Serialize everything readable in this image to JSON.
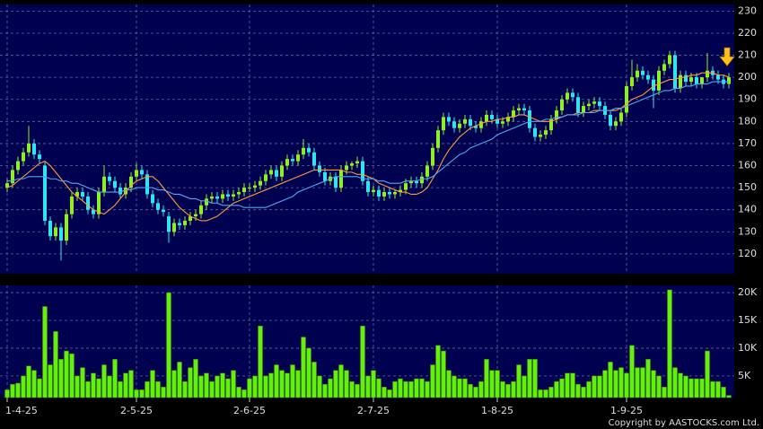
{
  "chart_data": {
    "type": "candlestick",
    "categories": [
      "1-4-25",
      null,
      null,
      null,
      null,
      null,
      null,
      null,
      null,
      null,
      null,
      null,
      null,
      null,
      null,
      null,
      null,
      null,
      null,
      null,
      null,
      null,
      null,
      null,
      "2-5-25",
      null,
      null,
      null,
      null,
      null,
      null,
      null,
      null,
      null,
      null,
      null,
      null,
      null,
      null,
      null,
      null,
      null,
      null,
      null,
      null,
      "2-6-25",
      null,
      null,
      null,
      null,
      null,
      null,
      null,
      null,
      null,
      null,
      null,
      null,
      null,
      null,
      null,
      null,
      null,
      null,
      null,
      null,
      null,
      null,
      "2-7-25",
      null,
      null,
      null,
      null,
      null,
      null,
      null,
      null,
      null,
      null,
      null,
      null,
      null,
      null,
      null,
      null,
      null,
      null,
      null,
      null,
      null,
      null,
      "1-8-25",
      null,
      null,
      null,
      null,
      null,
      null,
      null,
      null,
      null,
      null,
      null,
      null,
      null,
      null,
      null,
      null,
      null,
      null,
      null,
      null,
      null,
      null,
      null,
      "1-9-25",
      null,
      null,
      null,
      null,
      null,
      null,
      null,
      null,
      null,
      null,
      null,
      null,
      null,
      null,
      null,
      null,
      null,
      null,
      null
    ],
    "open": [
      150,
      152,
      158,
      162,
      166,
      170,
      165,
      160,
      135,
      128,
      132,
      126,
      138,
      146,
      148,
      146,
      140,
      138,
      148,
      155,
      153,
      150,
      147,
      150,
      155,
      158,
      156,
      147,
      143,
      140,
      137,
      130,
      134,
      133,
      135,
      137,
      138,
      142,
      145,
      146,
      145,
      147,
      146,
      147,
      148,
      150,
      150,
      151,
      153,
      156,
      158,
      155,
      160,
      163,
      162,
      165,
      168,
      166,
      160,
      157,
      153,
      155,
      150,
      158,
      160,
      161,
      162,
      153,
      148,
      149,
      146,
      148,
      147,
      148,
      149,
      152,
      153,
      152,
      155,
      160,
      168,
      176,
      182,
      180,
      177,
      179,
      181,
      178,
      177,
      180,
      183,
      181,
      179,
      180,
      182,
      185,
      186,
      185,
      177,
      173,
      174,
      176,
      181,
      185,
      190,
      193,
      191,
      184,
      187,
      188,
      189,
      187,
      183,
      178,
      180,
      184,
      196,
      200,
      203,
      201,
      199,
      194,
      203,
      206,
      210,
      195,
      201,
      198,
      200,
      197,
      200,
      203,
      201,
      199,
      197
    ],
    "high": [
      154,
      160,
      164,
      168,
      178,
      172,
      167,
      162,
      137,
      134,
      134,
      140,
      148,
      150,
      150,
      148,
      142,
      150,
      160,
      157,
      155,
      152,
      152,
      157,
      161,
      160,
      158,
      149,
      145,
      142,
      139,
      136,
      136,
      137,
      139,
      140,
      144,
      147,
      148,
      148,
      149,
      149,
      149,
      150,
      152,
      152,
      153,
      155,
      158,
      160,
      160,
      162,
      165,
      165,
      167,
      172,
      170,
      168,
      162,
      159,
      157,
      157,
      160,
      162,
      162,
      164,
      164,
      155,
      151,
      151,
      150,
      150,
      149,
      151,
      154,
      155,
      155,
      157,
      162,
      170,
      178,
      184,
      184,
      182,
      181,
      183,
      183,
      180,
      182,
      185,
      185,
      183,
      182,
      184,
      187,
      188,
      188,
      187,
      179,
      176,
      178,
      183,
      187,
      192,
      195,
      195,
      193,
      189,
      190,
      191,
      191,
      189,
      185,
      182,
      186,
      198,
      208,
      206,
      205,
      203,
      201,
      205,
      208,
      212,
      212,
      203,
      203,
      202,
      202,
      200,
      211,
      205,
      203,
      201,
      202
    ],
    "low": [
      148,
      150,
      156,
      160,
      164,
      163,
      161,
      133,
      126,
      126,
      117,
      124,
      136,
      144,
      144,
      138,
      136,
      136,
      146,
      151,
      148,
      145,
      145,
      148,
      153,
      154,
      145,
      141,
      138,
      137,
      125,
      128,
      131,
      131,
      133,
      135,
      136,
      140,
      143,
      143,
      143,
      144,
      144,
      145,
      146,
      148,
      148,
      149,
      151,
      154,
      153,
      153,
      158,
      160,
      160,
      163,
      164,
      158,
      155,
      151,
      151,
      148,
      148,
      156,
      158,
      159,
      151,
      146,
      146,
      144,
      144,
      145,
      145,
      146,
      147,
      150,
      150,
      150,
      153,
      158,
      166,
      174,
      178,
      175,
      175,
      177,
      176,
      175,
      175,
      178,
      179,
      177,
      177,
      178,
      180,
      183,
      183,
      175,
      171,
      171,
      172,
      174,
      179,
      183,
      188,
      189,
      182,
      182,
      185,
      186,
      185,
      181,
      176,
      176,
      178,
      182,
      194,
      198,
      199,
      197,
      186,
      192,
      201,
      204,
      193,
      193,
      196,
      196,
      195,
      195,
      198,
      199,
      197,
      195,
      195
    ],
    "close": [
      152,
      158,
      162,
      166,
      170,
      165,
      163,
      135,
      128,
      132,
      126,
      138,
      146,
      148,
      146,
      140,
      138,
      148,
      155,
      153,
      150,
      147,
      150,
      155,
      158,
      156,
      147,
      143,
      140,
      139,
      130,
      134,
      133,
      135,
      137,
      138,
      142,
      145,
      146,
      145,
      147,
      146,
      147,
      148,
      150,
      150,
      151,
      153,
      156,
      158,
      155,
      160,
      163,
      162,
      165,
      168,
      166,
      160,
      157,
      153,
      155,
      150,
      158,
      160,
      161,
      162,
      153,
      148,
      149,
      146,
      148,
      147,
      148,
      149,
      152,
      153,
      152,
      155,
      160,
      168,
      176,
      182,
      180,
      177,
      179,
      181,
      178,
      177,
      180,
      183,
      181,
      179,
      180,
      182,
      185,
      186,
      185,
      177,
      173,
      174,
      176,
      181,
      185,
      190,
      193,
      191,
      184,
      187,
      188,
      189,
      187,
      183,
      178,
      180,
      184,
      196,
      200,
      203,
      201,
      199,
      194,
      203,
      206,
      210,
      195,
      201,
      198,
      200,
      197,
      200,
      203,
      201,
      199,
      197,
      200
    ],
    "up_color": "#8cf026",
    "down_color": "#2ee6f0",
    "lines": [
      {
        "color": "#ff9a3c",
        "values": [
          150,
          151,
          153,
          155,
          157,
          159,
          161,
          162,
          160,
          157,
          154,
          151,
          148,
          146,
          144,
          142,
          140,
          139,
          138,
          140,
          142,
          145,
          148,
          151,
          153,
          154,
          155,
          155,
          153,
          150,
          147,
          144,
          141,
          139,
          137,
          136,
          135,
          135,
          136,
          137,
          139,
          141,
          143,
          144,
          145,
          146,
          147,
          148,
          149,
          150,
          151,
          152,
          153,
          154,
          155,
          156,
          157,
          158,
          158,
          158,
          158,
          158,
          158,
          157,
          157,
          156,
          156,
          155,
          154,
          152,
          151,
          150,
          149,
          148,
          148,
          147,
          147,
          148,
          150,
          154,
          158,
          163,
          167,
          170,
          173,
          175,
          177,
          178,
          179,
          180,
          180,
          181,
          181,
          182,
          182,
          183,
          183,
          182,
          181,
          180,
          180,
          180,
          181,
          182,
          183,
          183,
          184,
          184,
          184,
          185,
          185,
          185,
          185,
          185,
          186,
          188,
          190,
          191,
          192,
          194,
          196,
          197,
          198,
          199,
          199,
          200,
          200,
          201,
          201,
          202,
          202,
          202,
          201,
          201,
          200
        ]
      },
      {
        "color": "#4fa8f0",
        "values": [
          153,
          153,
          154,
          154,
          155,
          155,
          155,
          155,
          154,
          154,
          153,
          153,
          152,
          152,
          151,
          150,
          149,
          148,
          148,
          148,
          148,
          148,
          149,
          149,
          150,
          150,
          150,
          150,
          149,
          149,
          148,
          147,
          147,
          146,
          145,
          145,
          144,
          144,
          143,
          143,
          142,
          142,
          142,
          142,
          141,
          141,
          141,
          141,
          141,
          142,
          143,
          144,
          145,
          146,
          148,
          149,
          150,
          151,
          152,
          153,
          154,
          155,
          155,
          155,
          155,
          155,
          154,
          154,
          154,
          153,
          153,
          152,
          152,
          152,
          153,
          153,
          153,
          154,
          154,
          155,
          157,
          159,
          161,
          163,
          165,
          166,
          168,
          169,
          170,
          171,
          172,
          174,
          175,
          176,
          177,
          178,
          179,
          180,
          180,
          180,
          181,
          181,
          182,
          182,
          183,
          183,
          183,
          184,
          184,
          184,
          185,
          185,
          185,
          186,
          186,
          187,
          188,
          189,
          190,
          191,
          192,
          193,
          194,
          194,
          195,
          195,
          196,
          196,
          197,
          197,
          197,
          198,
          198,
          198,
          198
        ]
      }
    ],
    "ylim": [
      111,
      233
    ],
    "yticks": [
      120,
      130,
      140,
      150,
      160,
      170,
      180,
      190,
      200,
      210,
      220,
      230
    ],
    "grid": true,
    "volume": {
      "color": "#66ee11",
      "values": [
        2500,
        3500,
        3700,
        5000,
        6800,
        6000,
        4500,
        17500,
        7000,
        13000,
        8000,
        9500,
        9000,
        5000,
        6500,
        4000,
        5500,
        4500,
        7000,
        5000,
        8000,
        4000,
        5500,
        6000,
        2500,
        2500,
        4000,
        6000,
        4000,
        3000,
        20000,
        6000,
        7500,
        4000,
        6500,
        8000,
        5000,
        5500,
        4000,
        5000,
        5500,
        4500,
        6000,
        3000,
        2500,
        4500,
        5000,
        14000,
        5000,
        5500,
        7000,
        6000,
        5500,
        7000,
        6000,
        12000,
        10000,
        7500,
        5000,
        3500,
        4500,
        6000,
        7000,
        6000,
        4000,
        3500,
        14000,
        5000,
        6000,
        4500,
        3000,
        2500,
        4000,
        4500,
        4000,
        4000,
        4500,
        4500,
        4000,
        7000,
        10500,
        9500,
        6000,
        5000,
        4500,
        4500,
        3500,
        3000,
        4000,
        8000,
        6000,
        6000,
        4000,
        3500,
        4000,
        7000,
        5000,
        8000,
        8000,
        2500,
        2500,
        3000,
        4000,
        4500,
        5500,
        5500,
        3500,
        3000,
        4000,
        5000,
        5000,
        6000,
        7500,
        6000,
        6500,
        5500,
        10500,
        6500,
        6500,
        8000,
        6000,
        5000,
        3000,
        20500,
        6500,
        5500,
        5000,
        4500,
        4500,
        4500,
        9500,
        4000,
        4000,
        3000,
        1500
      ],
      "ylim": [
        1100,
        21300
      ],
      "yticks": [
        {
          "value": 5000,
          "label": "5K"
        },
        {
          "value": 10000,
          "label": "10K"
        },
        {
          "value": 15000,
          "label": "15K"
        },
        {
          "value": 20000,
          "label": "20K"
        }
      ]
    },
    "copyright": "Copyright by AASTOCKS.com Ltd."
  }
}
